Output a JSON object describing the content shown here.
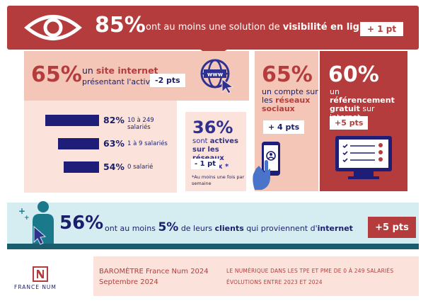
{
  "top": {
    "percent": "85%",
    "text_pre": "ont au moins une solution de",
    "text_bold": "visibilité en ligne",
    "badge": "+ 1 pt",
    "icon": "eye-icon"
  },
  "website": {
    "percent": "65%",
    "line1_pre": "un",
    "line1_hl": "site internet",
    "line2": "présentant l'activité",
    "badge": "-2 pts",
    "icon": "globe-cursor-icon",
    "bars": [
      {
        "pct": "82%",
        "label": "10 à 249 salariés",
        "value": 82
      },
      {
        "pct": "63%",
        "label": "1 à 9 salariés",
        "value": 63
      },
      {
        "pct": "54%",
        "label": "0 salarié",
        "value": 54
      }
    ]
  },
  "social_active": {
    "percent": "36%",
    "text_pre": "sont",
    "text_bold": "actives sur les réseaux sociaux *",
    "badge": "- 1 pt",
    "note": "*Au moins une fois par semaine"
  },
  "account": {
    "percent": "65%",
    "text_pre": "un compte sur les",
    "text_hl": "réseaux sociaux",
    "badge": "+ 4 pts",
    "icon": "smartphone-hand-icon"
  },
  "referencing": {
    "percent": "60%",
    "text_pre": "un",
    "text_bold": "référencement gratuit",
    "text_post": "sur internet",
    "badge": "+5 pts",
    "icon": "monitor-list-icon"
  },
  "clients": {
    "percent": "56%",
    "text_1": "ont au moins",
    "text_big": "5%",
    "text_2": "de leurs",
    "text_bold1": "clients",
    "text_3": "qui proviennent d'",
    "text_bold2": "internet",
    "badge": "+5 pts",
    "icon": "person-cursor-icon"
  },
  "footer": {
    "logo_text": "FRANCE NUM",
    "baro_title": "BAROMÈTRE France Num 2024",
    "baro_date": "Septembre 2024",
    "study_title": "LE NUMÉRIQUE DANS LES TPE ET PME DE 0 À 249 SALARIÉS",
    "study_sub": "ÉVOLUTIONS ENTRE 2023 ET 2024"
  },
  "colors": {
    "brand_red": "#b53c3c",
    "navy": "#1b1f6b",
    "salmon": "#f4c6b8",
    "light_pink": "#fbe3dc",
    "teal_light": "#d5ecf1",
    "teal_dark": "#1a5e6e"
  }
}
